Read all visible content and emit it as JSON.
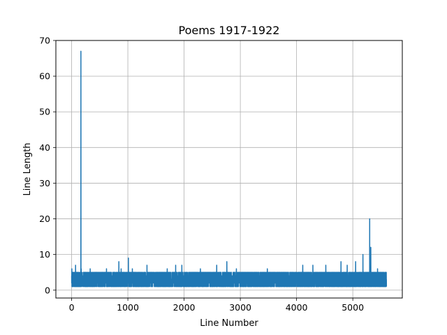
{
  "chart_data": {
    "type": "line",
    "title": "Poems 1917-1922",
    "xlabel": "Line Number",
    "ylabel": "Line Length",
    "xlim": [
      -280,
      5880
    ],
    "ylim": [
      -2.2,
      70
    ],
    "xticks": [
      0,
      1000,
      2000,
      3000,
      4000,
      5000
    ],
    "xtick_labels": [
      "0",
      "1000",
      "2000",
      "3000",
      "4000",
      "5000"
    ],
    "yticks": [
      0,
      10,
      20,
      30,
      40,
      50,
      60,
      70
    ],
    "ytick_labels": [
      "0",
      "10",
      "20",
      "30",
      "40",
      "50",
      "60",
      "70"
    ],
    "grid": true,
    "line_color": "#1f77b4",
    "series": [
      {
        "name": "Line Length",
        "n_points": 5600,
        "baseline_low": 1,
        "baseline_high": 5,
        "peaks": [
          {
            "x": 4,
            "y": 6
          },
          {
            "x": 70,
            "y": 7
          },
          {
            "x": 165,
            "y": 67
          },
          {
            "x": 170,
            "y": 6
          },
          {
            "x": 330,
            "y": 6
          },
          {
            "x": 620,
            "y": 6
          },
          {
            "x": 840,
            "y": 8
          },
          {
            "x": 880,
            "y": 6
          },
          {
            "x": 1010,
            "y": 9
          },
          {
            "x": 1080,
            "y": 6
          },
          {
            "x": 1340,
            "y": 7
          },
          {
            "x": 1700,
            "y": 6
          },
          {
            "x": 1850,
            "y": 7
          },
          {
            "x": 1960,
            "y": 7
          },
          {
            "x": 2290,
            "y": 6
          },
          {
            "x": 2580,
            "y": 7
          },
          {
            "x": 2760,
            "y": 8
          },
          {
            "x": 2930,
            "y": 6
          },
          {
            "x": 3480,
            "y": 6
          },
          {
            "x": 4110,
            "y": 7
          },
          {
            "x": 4290,
            "y": 7
          },
          {
            "x": 4520,
            "y": 7
          },
          {
            "x": 4790,
            "y": 8
          },
          {
            "x": 4900,
            "y": 7
          },
          {
            "x": 5050,
            "y": 8
          },
          {
            "x": 5180,
            "y": 10
          },
          {
            "x": 5300,
            "y": 20
          },
          {
            "x": 5320,
            "y": 12
          },
          {
            "x": 5440,
            "y": 6
          },
          {
            "x": 5595,
            "y": 5
          }
        ]
      }
    ]
  }
}
